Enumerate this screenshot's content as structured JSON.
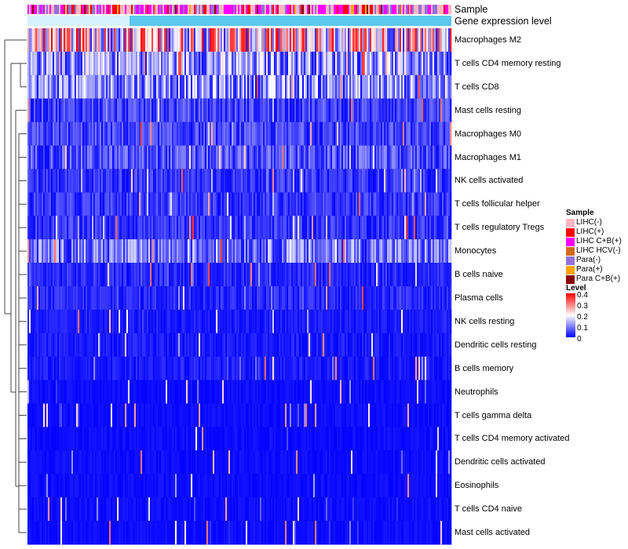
{
  "chart_data": {
    "type": "heatmap",
    "title": "",
    "annotations": [
      "Sample",
      "Gene expression level"
    ],
    "rows": [
      {
        "label": "Macrophages M2",
        "mean": 0.22
      },
      {
        "label": "T cells CD4 memory resting",
        "mean": 0.12
      },
      {
        "label": "T cells CD8",
        "mean": 0.11
      },
      {
        "label": "Mast cells resting",
        "mean": 0.05
      },
      {
        "label": "Macrophages M0",
        "mean": 0.05
      },
      {
        "label": "Macrophages M1",
        "mean": 0.06
      },
      {
        "label": "NK cells activated",
        "mean": 0.04
      },
      {
        "label": "T cells follicular helper",
        "mean": 0.04
      },
      {
        "label": "T cells regulatory  Tregs",
        "mean": 0.04
      },
      {
        "label": "Monocytes",
        "mean": 0.09
      },
      {
        "label": "B cells naive",
        "mean": 0.03
      },
      {
        "label": "Plasma cells",
        "mean": 0.03
      },
      {
        "label": "NK cells resting",
        "mean": 0.02
      },
      {
        "label": "Dendritic cells resting",
        "mean": 0.02
      },
      {
        "label": "B cells memory",
        "mean": 0.02
      },
      {
        "label": "Neutrophils",
        "mean": 0.01
      },
      {
        "label": "T cells gamma delta",
        "mean": 0.01
      },
      {
        "label": "T cells CD4 memory activated",
        "mean": 0.01
      },
      {
        "label": "Dendritic cells activated",
        "mean": 0.01
      },
      {
        "label": "Eosinophils",
        "mean": 0.01
      },
      {
        "label": "T cells CD4 naive",
        "mean": 0.01
      },
      {
        "label": "Mast cells activated",
        "mean": 0.01
      }
    ],
    "value_range": [
      0,
      0.4
    ],
    "color_scale": {
      "low": "#0000ff",
      "mid": "#ffffff",
      "high": "#ff0000"
    },
    "legend_sample": {
      "title": "Sample",
      "entries": [
        {
          "label": "LIHC(-)",
          "color": "#ffb6c1"
        },
        {
          "label": "LIHC(+)",
          "color": "#ff0000"
        },
        {
          "label": "LIHC C+B(+)",
          "color": "#ff00ff"
        },
        {
          "label": "LIHC HCV(-)",
          "color": "#d2691e"
        },
        {
          "label": "Para(-)",
          "color": "#9370db"
        },
        {
          "label": "Para(+)",
          "color": "#ffa500"
        },
        {
          "label": "Para C+B(+)",
          "color": "#8b0000"
        }
      ]
    },
    "legend_level": {
      "title": "Level",
      "ticks": [
        "0.4",
        "0.3",
        "0.2",
        "0.1",
        "0"
      ]
    },
    "expression_bar_color": "#5bc8f0"
  }
}
